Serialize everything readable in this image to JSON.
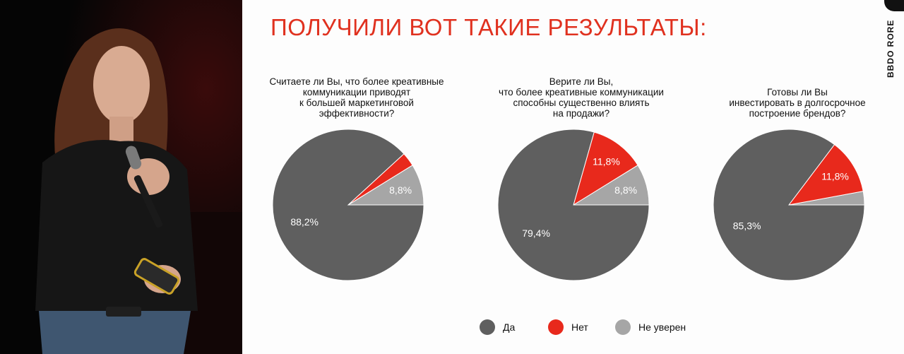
{
  "slide": {
    "title": "ПОЛУЧИЛИ ВОТ ТАКИЕ РЕЗУЛЬТАТЫ:",
    "brand": "BBDO RORE"
  },
  "legend": [
    {
      "label": "Да",
      "color": "#5f5f5f"
    },
    {
      "label": "Нет",
      "color": "#e8291c"
    },
    {
      "label": "Не уверен",
      "color": "#a6a6a6"
    }
  ],
  "chart_data": [
    {
      "type": "pie",
      "title": "Считаете ли Вы, что более креативные\nкоммуникации приводят\nк большей маркетинговой\nэффективности?",
      "slices": [
        {
          "label": "Да",
          "value": 88.2,
          "display": "88,2%"
        },
        {
          "label": "Нет",
          "value": 3.0,
          "display": ""
        },
        {
          "label": "Не уверен",
          "value": 8.8,
          "display": "8,8%"
        }
      ]
    },
    {
      "type": "pie",
      "title": "Верите ли Вы,\nчто более креативные коммуникации\nспособны существенно влиять\nна продажи?",
      "slices": [
        {
          "label": "Да",
          "value": 79.4,
          "display": "79,4%"
        },
        {
          "label": "Нет",
          "value": 11.8,
          "display": "11,8%"
        },
        {
          "label": "Не уверен",
          "value": 8.8,
          "display": "8,8%"
        }
      ]
    },
    {
      "type": "pie",
      "title": "Готовы ли Вы\nинвестировать в долгосрочное\nпостроение брендов?",
      "slices": [
        {
          "label": "Да",
          "value": 85.3,
          "display": "85,3%"
        },
        {
          "label": "Нет",
          "value": 11.8,
          "display": "11,8%"
        },
        {
          "label": "Не уверен",
          "value": 2.9,
          "display": ""
        }
      ]
    }
  ]
}
